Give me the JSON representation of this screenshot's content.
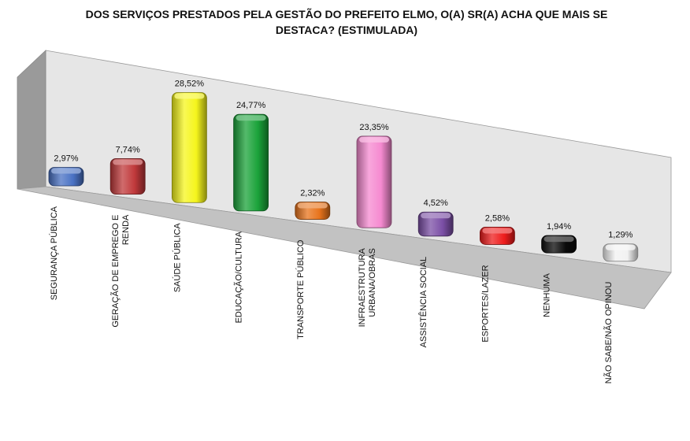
{
  "chart_data": {
    "type": "bar",
    "title_line1": "DOS SERVIÇOS PRESTADOS PELA GESTÃO DO PREFEITO ELMO, O(A) SR(A) ACHA QUE MAIS SE",
    "title_line2": "DESTACA? (ESTIMULADA)",
    "categories": [
      [
        "SEGURANÇA PÚBLICA"
      ],
      [
        "GERAÇÃO DE EMPREGO E",
        "RENDA"
      ],
      [
        "SAÚDE PÚBLICA"
      ],
      [
        "EDUCAÇÃO/CULTURA"
      ],
      [
        "TRANSPORTE PÚBLICO"
      ],
      [
        "INFRAESTRUTURA",
        "URBANA/OBRAS"
      ],
      [
        "ASSISTÊNCIA SOCIAL"
      ],
      [
        "ESPORTES/LAZER"
      ],
      [
        "NENHUMA"
      ],
      [
        "NÃO SABE/NÃO OPINOU"
      ]
    ],
    "values": [
      2.97,
      7.74,
      28.52,
      24.77,
      2.32,
      23.35,
      4.52,
      2.58,
      1.94,
      1.29
    ],
    "value_labels": [
      "2,97%",
      "7,74%",
      "28,52%",
      "24,77%",
      "2,32%",
      "23,35%",
      "4,52%",
      "2,58%",
      "1,94%",
      "1,29%"
    ],
    "colors": [
      "#4a72c4",
      "#c0393b",
      "#f5f51c",
      "#1ba33a",
      "#e8741c",
      "#f58ad0",
      "#7b4fa6",
      "#ee1c1c",
      "#0a0a0a",
      "#f2f2f2"
    ],
    "grid": false,
    "legend": "none"
  }
}
